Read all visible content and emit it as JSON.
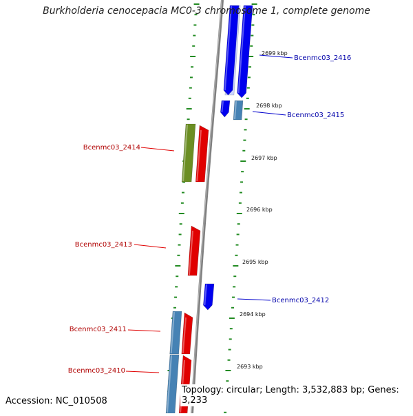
{
  "title": "Burkholderia cenocepacia MC0-3 chromosome 1, complete genome",
  "accession_text": "Accession: NC_010508",
  "topology_text": "Topology: circular; Length: 3,532,883 bp; Genes: 3,233",
  "colors": {
    "forward_gene": "#e00000",
    "reverse_gene": "#0000ee",
    "forward_label": "#b00000",
    "reverse_label": "#0000aa",
    "olive_gene": "#6b8e23",
    "steel_gene": "#4682b4",
    "tick_green": "#228b22",
    "backbone": "#808080"
  },
  "gene_labels_left": [
    {
      "name": "Bcenmc03_2414"
    },
    {
      "name": "Bcenmc03_2413"
    },
    {
      "name": "Bcenmc03_2411"
    },
    {
      "name": "Bcenmc03_2410"
    }
  ],
  "gene_labels_right": [
    {
      "name": "Bcenmc03_2416"
    },
    {
      "name": "Bcenmc03_2415"
    },
    {
      "name": "Bcenmc03_2412"
    }
  ],
  "kbp_labels": [
    "2699 kbp",
    "2698 kbp",
    "2697 kbp",
    "2696 kbp",
    "2695 kbp",
    "2694 kbp",
    "2693 kbp"
  ]
}
